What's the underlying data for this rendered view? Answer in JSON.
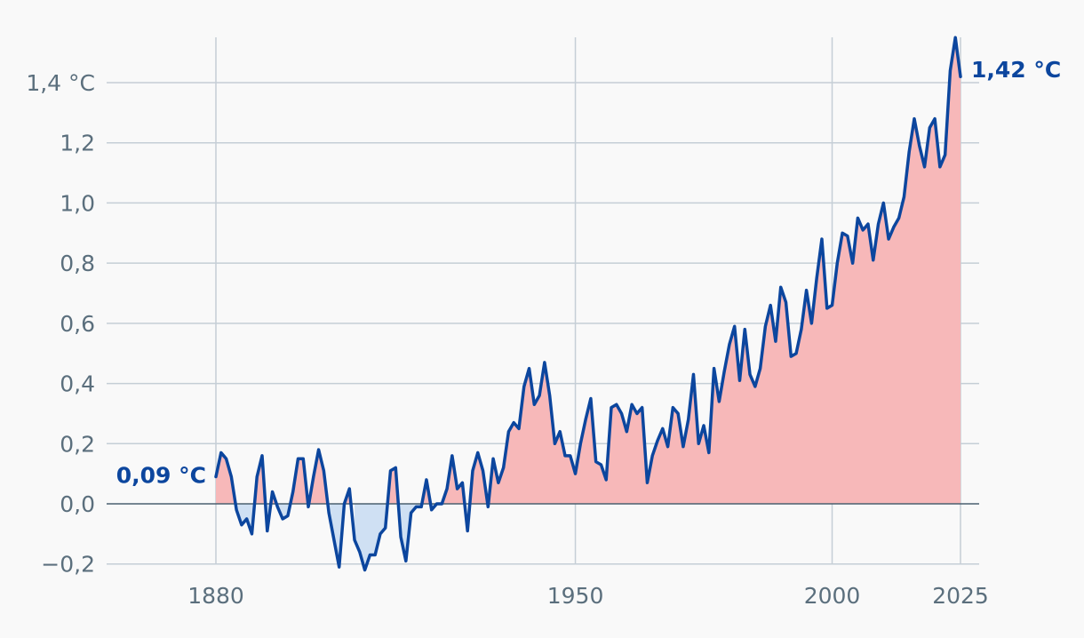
{
  "chart_data": {
    "type": "area",
    "title": "",
    "xlabel": "",
    "ylabel": "",
    "xlim": [
      1880,
      2025
    ],
    "ylim": [
      -0.2,
      1.5
    ],
    "grid": true,
    "colors": {
      "line": "#0c469e",
      "positive_fill": "#f7b8b9",
      "negative_fill": "#cfe0f3",
      "zero_line": "#4a6070",
      "grid": "#c5ced6"
    },
    "x_ticks": [
      {
        "value": 1880,
        "label": "1880"
      },
      {
        "value": 1950,
        "label": "1950"
      },
      {
        "value": 2000,
        "label": "2000"
      },
      {
        "value": 2025,
        "label": "2025"
      }
    ],
    "y_ticks": [
      {
        "value": 1.4,
        "label": "1,4 °C"
      },
      {
        "value": 1.2,
        "label": "1,2"
      },
      {
        "value": 1.0,
        "label": "1,0"
      },
      {
        "value": 0.8,
        "label": "0,8"
      },
      {
        "value": 0.6,
        "label": "0,6"
      },
      {
        "value": 0.4,
        "label": "0,4"
      },
      {
        "value": 0.2,
        "label": "0,2"
      },
      {
        "value": 0.0,
        "label": "0,0"
      },
      {
        "value": -0.2,
        "label": "−0,2"
      }
    ],
    "start_label": "0,09 °C",
    "end_label": "1,42 °C",
    "series": [
      {
        "x": [
          1880,
          1881,
          1882,
          1883,
          1884,
          1885,
          1886,
          1887,
          1888,
          1889,
          1890,
          1891,
          1892,
          1893,
          1894,
          1895,
          1896,
          1897,
          1898,
          1899,
          1900,
          1901,
          1902,
          1903,
          1904,
          1905,
          1906,
          1907,
          1908,
          1909,
          1910,
          1911,
          1912,
          1913,
          1914,
          1915,
          1916,
          1917,
          1918,
          1919,
          1920,
          1921,
          1922,
          1923,
          1924,
          1925,
          1926,
          1927,
          1928,
          1929,
          1930,
          1931,
          1932,
          1933,
          1934,
          1935,
          1936,
          1937,
          1938,
          1939,
          1940,
          1941,
          1942,
          1943,
          1944,
          1945,
          1946,
          1947,
          1948,
          1949,
          1950,
          1951,
          1952,
          1953,
          1954,
          1955,
          1956,
          1957,
          1958,
          1959,
          1960,
          1961,
          1962,
          1963,
          1964,
          1965,
          1966,
          1967,
          1968,
          1969,
          1970,
          1971,
          1972,
          1973,
          1974,
          1975,
          1976,
          1977,
          1978,
          1979,
          1980,
          1981,
          1982,
          1983,
          1984,
          1985,
          1986,
          1987,
          1988,
          1989,
          1990,
          1991,
          1992,
          1993,
          1994,
          1995,
          1996,
          1997,
          1998,
          1999,
          2000,
          2001,
          2002,
          2003,
          2004,
          2005,
          2006,
          2007,
          2008,
          2009,
          2010,
          2011,
          2012,
          2013,
          2014,
          2015,
          2016,
          2017,
          2018,
          2019,
          2020,
          2021,
          2022,
          2023,
          2024,
          2025
        ],
        "values": [
          0.09,
          0.17,
          0.15,
          0.09,
          -0.02,
          -0.07,
          -0.05,
          -0.1,
          0.09,
          0.16,
          -0.09,
          0.04,
          -0.01,
          -0.05,
          -0.04,
          0.04,
          0.15,
          0.15,
          -0.01,
          0.09,
          0.18,
          0.11,
          -0.03,
          -0.12,
          -0.21,
          0.0,
          0.05,
          -0.12,
          -0.16,
          -0.22,
          -0.17,
          -0.17,
          -0.1,
          -0.08,
          0.11,
          0.12,
          -0.11,
          -0.19,
          -0.03,
          -0.01,
          -0.01,
          0.08,
          -0.02,
          0.0,
          0.0,
          0.05,
          0.16,
          0.05,
          0.07,
          -0.09,
          0.11,
          0.17,
          0.11,
          -0.01,
          0.15,
          0.07,
          0.12,
          0.24,
          0.27,
          0.25,
          0.39,
          0.45,
          0.33,
          0.36,
          0.47,
          0.36,
          0.2,
          0.24,
          0.16,
          0.16,
          0.1,
          0.2,
          0.28,
          0.35,
          0.14,
          0.13,
          0.08,
          0.32,
          0.33,
          0.3,
          0.24,
          0.33,
          0.3,
          0.32,
          0.07,
          0.16,
          0.21,
          0.25,
          0.19,
          0.32,
          0.3,
          0.19,
          0.28,
          0.43,
          0.2,
          0.26,
          0.17,
          0.45,
          0.34,
          0.44,
          0.53,
          0.59,
          0.41,
          0.58,
          0.43,
          0.39,
          0.45,
          0.59,
          0.66,
          0.54,
          0.72,
          0.67,
          0.49,
          0.5,
          0.58,
          0.71,
          0.6,
          0.75,
          0.88,
          0.65,
          0.66,
          0.8,
          0.9,
          0.89,
          0.8,
          0.95,
          0.91,
          0.93,
          0.81,
          0.93,
          1.0,
          0.88,
          0.92,
          0.95,
          1.02,
          1.17,
          1.28,
          1.19,
          1.12,
          1.25,
          1.28,
          1.12,
          1.16,
          1.44,
          1.55,
          1.42
        ]
      }
    ]
  }
}
